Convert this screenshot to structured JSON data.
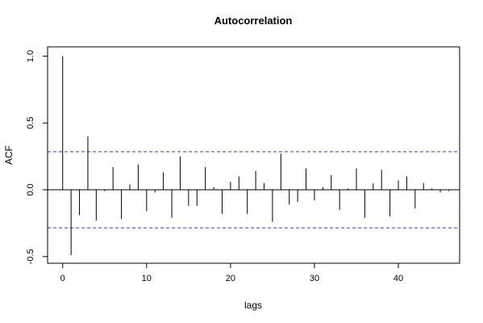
{
  "chart_data": {
    "type": "bar",
    "title": "Autocorrelation",
    "xlabel": "lags",
    "ylabel": "ACF",
    "xlim": [
      -1.8,
      47.3
    ],
    "ylim": [
      -0.55,
      1.07
    ],
    "x_ticks": [
      0,
      10,
      20,
      30,
      40
    ],
    "y_ticks": [
      -0.5,
      0.0,
      0.5,
      1.0
    ],
    "x_tick_labels": [
      "0",
      "10",
      "20",
      "30",
      "40"
    ],
    "y_tick_labels": [
      "-0.5",
      "0.0",
      "0.5",
      "1.0"
    ],
    "confidence_bounds": [
      0.285,
      -0.285
    ],
    "colors": {
      "bars": "#000000",
      "bounds": "#3333ff",
      "zero_line": "#000000"
    },
    "grid": false,
    "lags": [
      0,
      1,
      2,
      3,
      4,
      5,
      6,
      7,
      8,
      9,
      10,
      11,
      12,
      13,
      14,
      15,
      16,
      17,
      18,
      19,
      20,
      21,
      22,
      23,
      24,
      25,
      26,
      27,
      28,
      29,
      30,
      31,
      32,
      33,
      34,
      35,
      36,
      37,
      38,
      39,
      40,
      41,
      42,
      43,
      44,
      45,
      46
    ],
    "values": [
      1.0,
      -0.49,
      -0.19,
      0.4,
      -0.23,
      -0.01,
      0.17,
      -0.22,
      0.04,
      0.19,
      -0.16,
      -0.02,
      0.13,
      -0.21,
      0.25,
      -0.12,
      -0.12,
      0.17,
      0.02,
      -0.18,
      0.06,
      0.1,
      -0.18,
      0.14,
      0.05,
      -0.24,
      0.27,
      -0.11,
      -0.09,
      0.16,
      -0.08,
      0.02,
      0.11,
      -0.15,
      0.01,
      0.16,
      -0.21,
      0.05,
      0.15,
      -0.2,
      0.07,
      0.1,
      -0.14,
      0.05,
      0.01,
      -0.02,
      -0.01
    ]
  }
}
